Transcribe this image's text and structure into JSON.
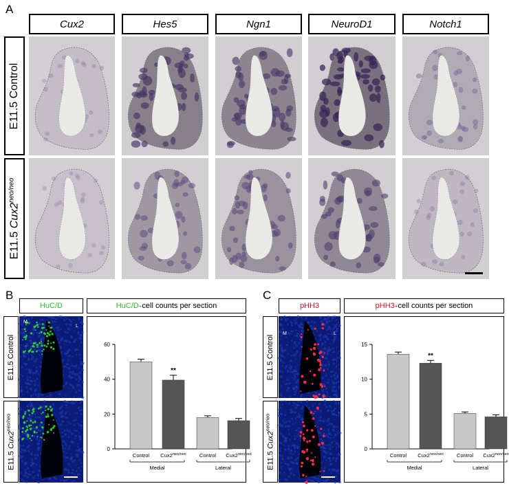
{
  "panel_a": {
    "letter": "A",
    "genes": [
      "Cux2",
      "Hes5",
      "Ngn1",
      "NeuroD1",
      "Notch1"
    ],
    "rows": [
      {
        "label": "E11.5 Control"
      },
      {
        "label_prefix": "E11.5 ",
        "label_gene": "Cux2",
        "label_sup": "neo/neo"
      }
    ]
  },
  "panel_b": {
    "letter": "B",
    "marker": "HuC/D",
    "marker_color": "#2fb22f",
    "title_marker": "HuC/D",
    "title_sup": "+",
    "title_rest": " cell counts per section",
    "row_control": "E11.5 Control",
    "row_mutant_prefix": "E11.5 ",
    "row_mutant_gene": "Cux2",
    "row_mutant_sup": "neo/neo",
    "img_labels": {
      "medial": "M",
      "lateral": "L"
    }
  },
  "panel_c": {
    "letter": "C",
    "marker": "pHH3",
    "marker_color": "#e0102a",
    "title_marker": "pHH3",
    "title_sup": "+",
    "title_rest": " cell counts per section",
    "row_control": "E11.5 Control",
    "row_mutant_prefix": "E11.5 ",
    "row_mutant_gene": "Cux2",
    "row_mutant_sup": "neo/neo",
    "img_labels": {
      "medial": "M",
      "lateral": "L"
    }
  },
  "chart_data": [
    {
      "type": "bar",
      "panel": "B",
      "categories": [
        "Control",
        "Cux2neo/neo",
        "Control",
        "Cux2neo/neo"
      ],
      "category_sup": [
        "",
        "neo/neo",
        "",
        "neo/neo"
      ],
      "category_base": [
        "Control",
        "Cux2",
        "Control",
        "Cux2"
      ],
      "groups": [
        "Medial",
        "Lateral"
      ],
      "values": [
        50,
        39.5,
        18,
        16.2
      ],
      "errors": [
        1.5,
        2.8,
        1.0,
        1.3
      ],
      "bar_colors": [
        "#c8c8c8",
        "#555555",
        "#c8c8c8",
        "#555555"
      ],
      "significance": [
        "",
        "**",
        "",
        ""
      ],
      "ylim": [
        0,
        60
      ],
      "yticks": [
        0,
        20,
        40,
        60
      ]
    },
    {
      "type": "bar",
      "panel": "C",
      "categories": [
        "Control",
        "Cux2neo/neo",
        "Control",
        "Cux2neo/neo"
      ],
      "category_sup": [
        "",
        "neo/neo",
        "",
        "neo/neo"
      ],
      "category_base": [
        "Control",
        "Cux2",
        "Control",
        "Cux2"
      ],
      "groups": [
        "Medial",
        "Lateral"
      ],
      "values": [
        13.6,
        12.3,
        5.1,
        4.6
      ],
      "errors": [
        0.3,
        0.4,
        0.2,
        0.3
      ],
      "bar_colors": [
        "#c8c8c8",
        "#555555",
        "#c8c8c8",
        "#555555"
      ],
      "significance": [
        "",
        "**",
        "",
        ""
      ],
      "ylim": [
        0,
        15
      ],
      "yticks": [
        0,
        5,
        10,
        15
      ]
    }
  ]
}
